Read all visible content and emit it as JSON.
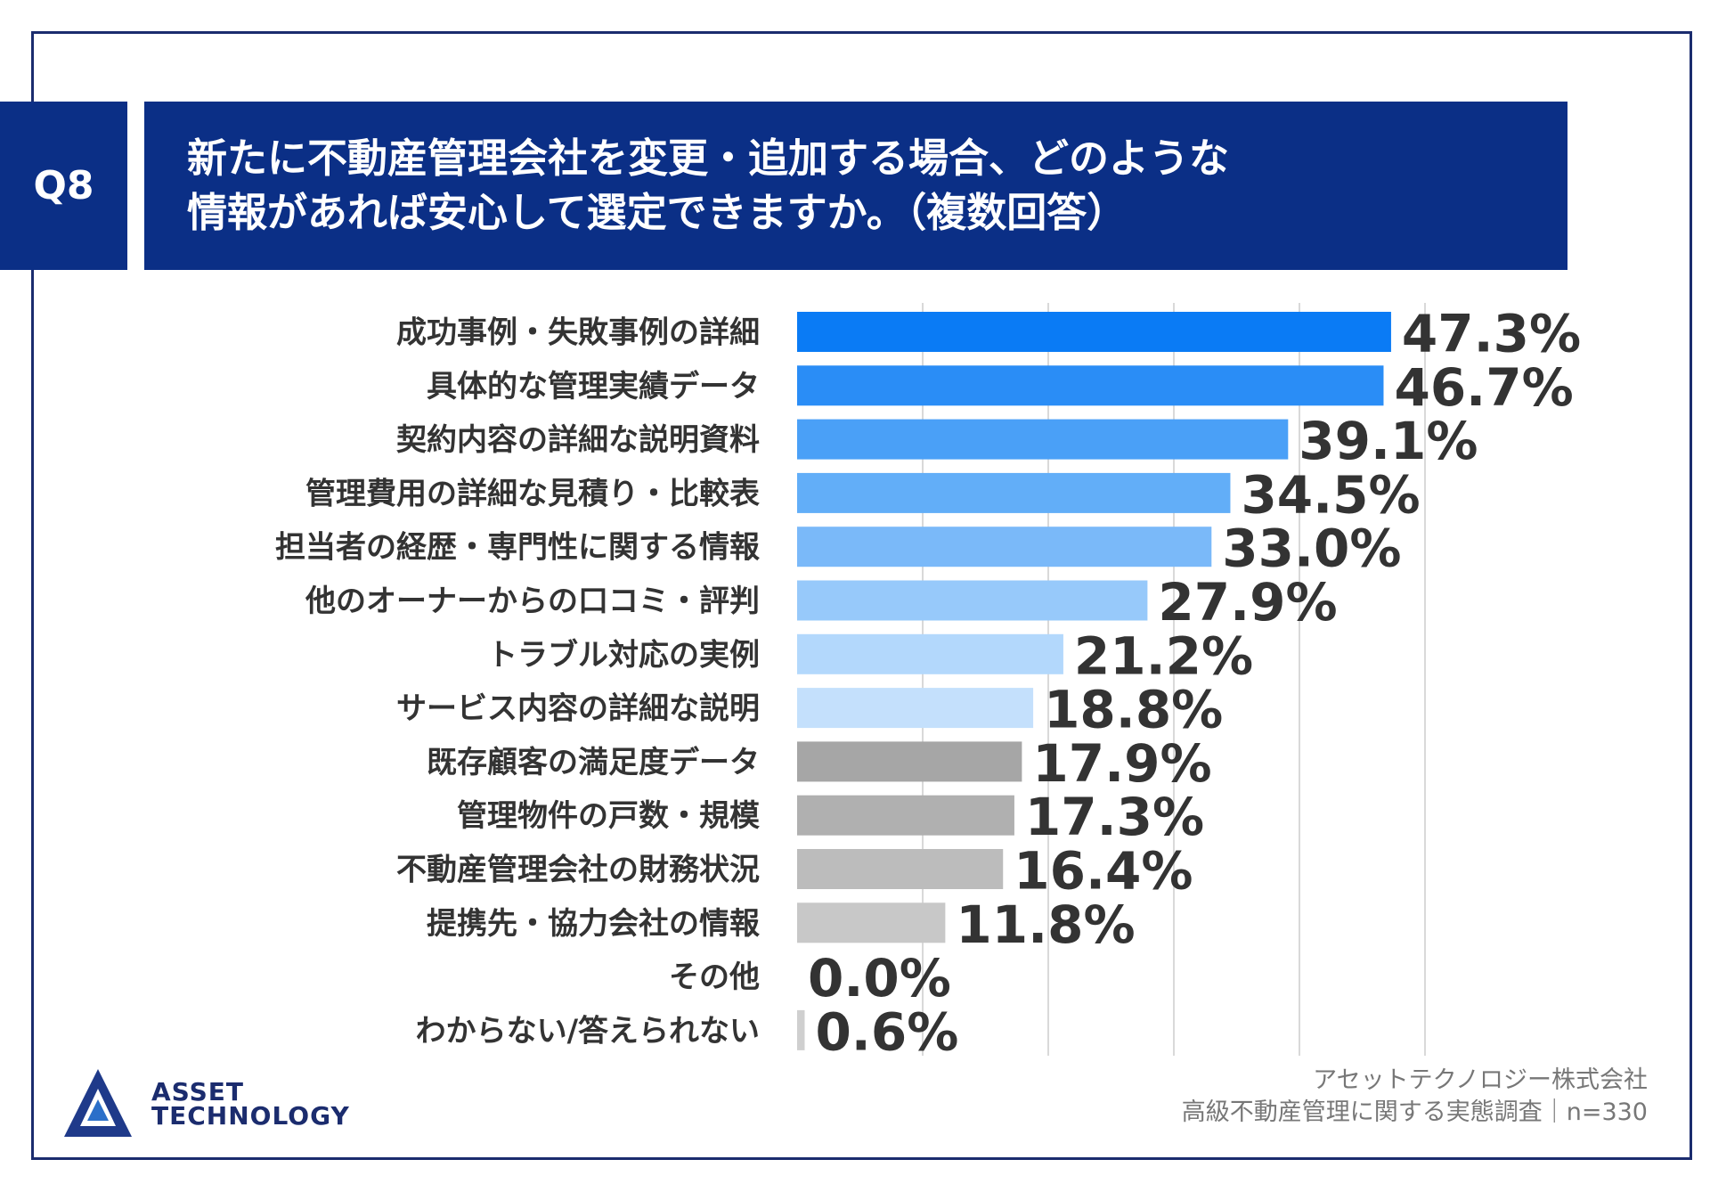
{
  "question": {
    "number": "Q8",
    "title_line1": "新たに不動産管理会社を変更・追加する場合、どのような",
    "title_line2": "情報があれば安心して選定できますか。（複数回答）"
  },
  "colors": {
    "frame": "#1b2c6e",
    "header_bg": "#0b2f86",
    "gridline": "#d9d9d9",
    "label_text": "#333333",
    "source_text": "#777777"
  },
  "chart_data": {
    "type": "bar",
    "orientation": "horizontal",
    "title": "新たに不動産管理会社を変更・追加する場合、どのような情報があれば安心して選定できますか。（複数回答）",
    "categories": [
      "成功事例・失敗事例の詳細",
      "具体的な管理実績データ",
      "契約内容の詳細な説明資料",
      "管理費用の詳細な見積り・比較表",
      "担当者の経歴・専門性に関する情報",
      "他のオーナーからの口コミ・評判",
      "トラブル対応の実例",
      "サービス内容の詳細な説明",
      "既存顧客の満足度データ",
      "管理物件の戸数・規模",
      "不動産管理会社の財務状況",
      "提携先・協力会社の情報",
      "その他",
      "わからない/答えられない"
    ],
    "values": [
      47.3,
      46.7,
      39.1,
      34.5,
      33.0,
      27.9,
      21.2,
      18.8,
      17.9,
      17.3,
      16.4,
      11.8,
      0.0,
      0.6
    ],
    "value_labels": [
      "47.3%",
      "46.7%",
      "39.1%",
      "34.5%",
      "33.0%",
      "27.9%",
      "21.2%",
      "18.8%",
      "17.9%",
      "17.3%",
      "16.4%",
      "11.8%",
      "0.0%",
      "0.6%"
    ],
    "bar_colors": [
      "#0a7bf5",
      "#2a8df6",
      "#4aa0f7",
      "#62aef8",
      "#7ab9f9",
      "#97c9fa",
      "#b3d8fc",
      "#c4e0fc",
      "#a6a6a6",
      "#b0b0b0",
      "#bcbcbc",
      "#c8c8c8",
      "#cfcfcf",
      "#cfcfcf"
    ],
    "xlim": [
      0,
      50
    ],
    "grid": true,
    "xlabel": "",
    "ylabel": "",
    "unit": "%"
  },
  "logo": {
    "line1": "ASSET",
    "line2": "TECHNOLOGY"
  },
  "source": {
    "company": "アセットテクノロジー株式会社",
    "survey": "高級不動産管理に関する実態調査｜n=330"
  }
}
